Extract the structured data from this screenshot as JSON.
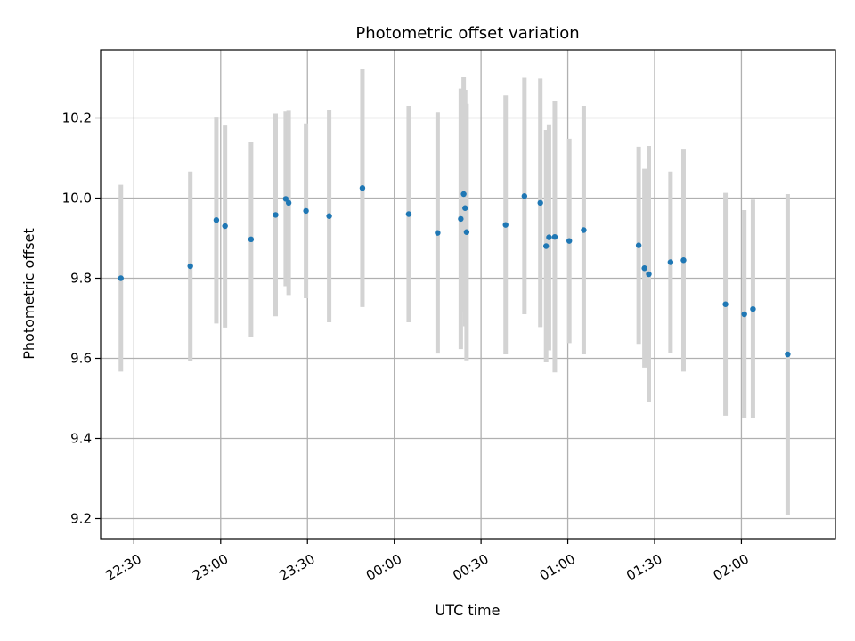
{
  "chart_data": {
    "type": "scatter",
    "title": "Photometric offset variation",
    "xlabel": "UTC time",
    "ylabel": "Photometric offset",
    "x_tick_labels": [
      "22:30",
      "23:00",
      "23:30",
      "00:00",
      "00:30",
      "01:00",
      "01:30",
      "02:00"
    ],
    "y_tick_labels": [
      "9.2",
      "9.4",
      "9.6",
      "9.8",
      "10.0",
      "10.2"
    ],
    "x_ticks_minutes": [
      -90,
      -60,
      -30,
      0,
      30,
      60,
      90,
      120
    ],
    "y_ticks": [
      9.2,
      9.4,
      9.6,
      9.8,
      10.0,
      10.2
    ],
    "xlim": [
      "22:18:30",
      "02:32:30"
    ],
    "ylim": [
      9.15,
      10.37
    ],
    "grid": true,
    "series": [
      {
        "x": [
          "22:25:30",
          "22:49:30",
          "22:58:30",
          "23:01:30",
          "23:10:30",
          "23:19:00",
          "23:22:30",
          "23:23:30",
          "23:29:30",
          "23:37:30",
          "23:49:00",
          "00:05:00",
          "00:15:00",
          "00:23:00",
          "00:24:00",
          "00:24:30",
          "00:25:00",
          "00:38:30",
          "00:45:00",
          "00:50:30",
          "00:52:30",
          "00:53:30",
          "00:55:30",
          "01:00:30",
          "01:05:30",
          "01:24:30",
          "01:26:30",
          "01:28:00",
          "01:35:30",
          "01:40:00",
          "01:54:30",
          "02:01:00",
          "02:04:00",
          "02:16:00"
        ],
        "y": [
          9.8,
          9.83,
          9.945,
          9.93,
          9.897,
          9.958,
          9.998,
          9.988,
          9.968,
          9.955,
          10.025,
          9.96,
          9.913,
          9.948,
          10.01,
          9.975,
          9.915,
          9.933,
          10.005,
          9.988,
          9.88,
          9.902,
          9.903,
          9.893,
          9.92,
          9.882,
          9.825,
          9.81,
          9.84,
          9.845,
          9.735,
          9.71,
          9.723,
          9.61
        ],
        "yerr": [
          0.233,
          0.236,
          0.258,
          0.253,
          0.243,
          0.253,
          0.218,
          0.23,
          0.218,
          0.265,
          0.297,
          0.27,
          0.301,
          0.325,
          0.293,
          0.295,
          0.32,
          0.323,
          0.295,
          0.31,
          0.29,
          0.282,
          0.338,
          0.255,
          0.31,
          0.246,
          0.248,
          0.32,
          0.226,
          0.278,
          0.278,
          0.26,
          0.273,
          0.4
        ]
      }
    ],
    "colors": {
      "marker": "#1f77b4",
      "errorbar": "#d3d3d3",
      "grid": "#b0b0b0",
      "frame": "#000000"
    }
  }
}
